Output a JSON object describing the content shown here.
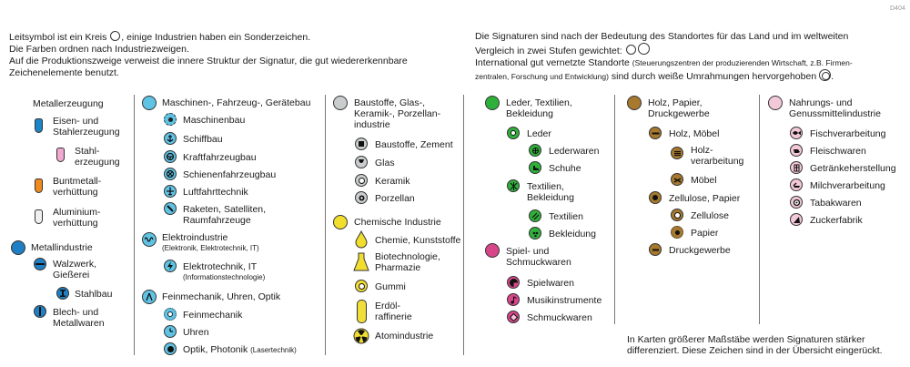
{
  "page_code": "D404",
  "intro_left": [
    "Leitsymbol ist ein Kreis",
    ", einige Industrien haben ein Sonderzeichen.",
    "Die Farben ordnen nach Industriezweigen.",
    "Auf die Produktionszweige verweist die innere Struktur der Signatur, die gut wiedererkennbare",
    "Zeichenelemente benutzt."
  ],
  "intro_right": [
    "Die Signaturen sind nach der Bedeutung des Standortes für das Land und im weltweiten",
    "Vergleich in zwei Stufen gewichtet:",
    "International gut vernetzte Standorte",
    "(Steuerungszentren der produzierenden Wirtschaft, z.B. Firmen-",
    "zentralen, Forschung und Entwicklung)",
    "sind durch weiße Umrahmungen hervorgehoben"
  ],
  "colors": {
    "metal": "#1e7fc4",
    "machine": "#5fc3e4",
    "building": "#c9cdcd",
    "chemical": "#f2de2e",
    "leather": "#2fb03a",
    "toys": "#d8468a",
    "wood": "#a6792f",
    "food": "#f3c8d8",
    "steel": "#1b85c8",
    "lightpink": "#f0a9cf",
    "orange": "#ee8a1e",
    "alu": "#efefef"
  },
  "col1": {
    "metallerzeugung": "Metallerzeugung",
    "eisen": [
      "Eisen- und",
      "Stahlerzeugung"
    ],
    "stahl": [
      "Stahl-",
      "erzeugung"
    ],
    "buntmetall": [
      "Buntmetall-",
      "verhüttung"
    ],
    "aluminium": [
      "Aluminium-",
      "verhüttung"
    ],
    "metallindustrie": "Metallindustrie",
    "walzwerk": [
      "Walzwerk,",
      "Gießerei"
    ],
    "stahlbau": "Stahlbau",
    "blech": [
      "Blech- und",
      "Metallwaren"
    ]
  },
  "col2": {
    "maschinen": "Maschinen-, Fahrzeug-, Gerätebau",
    "maschinenbau": "Maschinenbau",
    "schiffbau": "Schiffbau",
    "kraftfahrzeugbau": "Kraftfahrzeugbau",
    "schienen": "Schienenfahrzeugbau",
    "luftfahrt": "Luftfahrttechnik",
    "raketen": [
      "Raketen, Satelliten,",
      "Raumfahrzeuge"
    ],
    "elektroindustrie": "Elektroindustrie",
    "elektro_sub": "(Elektronik, Elektrotechnik, IT)",
    "elektrotechnik": "Elektrotechnik, IT",
    "elektrotechnik_sub": "(Informationstechnologie)",
    "feinmechanik_group": "Feinmechanik, Uhren, Optik",
    "feinmechanik": "Feinmechanik",
    "uhren": "Uhren",
    "optik": "Optik, Photonik",
    "optik_sub": "(Lasertechnik)"
  },
  "col3": {
    "baustoffe_group": [
      "Baustoffe, Glas-,",
      "Keramik-, Porzellan-",
      "industrie"
    ],
    "baustoffe": "Baustoffe, Zement",
    "glas": "Glas",
    "keramik": "Keramik",
    "porzellan": "Porzellan",
    "chemische": "Chemische Industrie",
    "chemie": "Chemie, Kunststoffe",
    "biotech": [
      "Biotechnologie,",
      "Pharmazie"
    ],
    "gummi": "Gummi",
    "erdoel": [
      "Erdöl-",
      "raffinerie"
    ],
    "atom": "Atomindustrie"
  },
  "col4": {
    "leder_group": [
      "Leder, Textilien,",
      "Bekleidung"
    ],
    "leder": "Leder",
    "lederwaren": "Lederwaren",
    "schuhe": "Schuhe",
    "textilien_group": [
      "Textilien,",
      "Bekleidung"
    ],
    "textilien": "Textilien",
    "bekleidung": "Bekleidung",
    "spiel_group": [
      "Spiel- und",
      "Schmuckwaren"
    ],
    "spielwaren": "Spielwaren",
    "musik": "Musikinstrumente",
    "schmuck": "Schmuckwaren"
  },
  "col5": {
    "holz_group": [
      "Holz, Papier,",
      "Druckgewerbe"
    ],
    "holz": "Holz, Möbel",
    "holzverarbeitung": [
      "Holz-",
      "verarbeitung"
    ],
    "moebel": "Möbel",
    "zellulose_group": "Zellulose, Papier",
    "zellulose": "Zellulose",
    "papier": "Papier",
    "druck": "Druckgewerbe"
  },
  "col6": {
    "nahrung_group": [
      "Nahrungs- und",
      "Genussmittelindustrie"
    ],
    "fisch": "Fischverarbeitung",
    "fleisch": "Fleischwaren",
    "getraenke": "Getränkeherstellung",
    "milch": "Milchverarbeitung",
    "tabak": "Tabakwaren",
    "zucker": "Zuckerfabrik"
  },
  "footnote": [
    "In Karten größerer Maßstäbe werden Signaturen stärker",
    "differenziert. Diese Zeichen sind in der Übersicht eingerückt."
  ]
}
